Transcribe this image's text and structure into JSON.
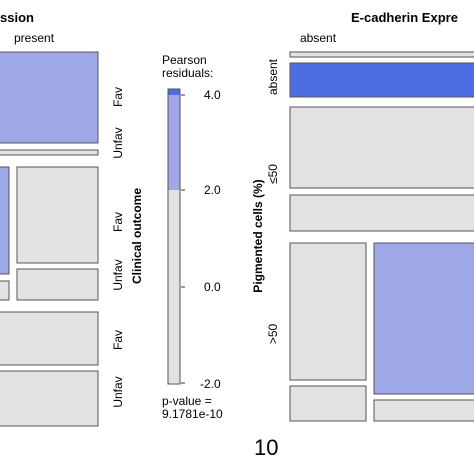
{
  "chart_data": [
    {
      "type": "mosaic",
      "title_fragment": "ssion",
      "column_label": "present",
      "x_variable_label": "Clinical outcome",
      "row_labels": [
        "Fav",
        "Unfav",
        "Fav",
        "Unfav",
        "Fav",
        "Unfav"
      ],
      "tiles": [
        {
          "row": 1,
          "col": "present",
          "residual": 3.0
        },
        {
          "row": 2,
          "col": "left",
          "residual": 3.0
        },
        {
          "row": 2,
          "col": "right",
          "residual": 0
        },
        {
          "row": 3,
          "col": "left",
          "residual": 0
        },
        {
          "row": 3,
          "col": "right",
          "residual": 0
        },
        {
          "row": 4,
          "col": "full",
          "residual": 0
        },
        {
          "row": 5,
          "col": "full",
          "residual": 0
        }
      ]
    },
    {
      "type": "mosaic",
      "title_fragment": "E-cadherin Expre",
      "column_label": "absent",
      "y_variable_label": "Pigmented cells (%)",
      "row_labels": [
        "absent",
        "≤50",
        ">50"
      ],
      "tiles": [
        {
          "row": "absent",
          "col": 1,
          "residual": 0
        },
        {
          "row": "absent",
          "col": 2,
          "residual": 4.0
        },
        {
          "row": "≤50",
          "col": 1,
          "residual": 0
        },
        {
          "row": "≤50",
          "col": 2,
          "residual": 0
        },
        {
          "row": ">50",
          "col": "absent-left",
          "residual": 0
        },
        {
          "row": ">50",
          "col": "right",
          "residual": 3.0
        },
        {
          "row": ">50",
          "col": "absent-left-bottom",
          "residual": 0
        },
        {
          "row": ">50",
          "col": "right-bottom",
          "residual": 0
        }
      ]
    }
  ],
  "legend": {
    "title_line1": "Pearson",
    "title_line2": "residuals:",
    "ticks": [
      "4.0",
      "2.0",
      "0.0",
      "-2.0"
    ],
    "range": [
      -2.0,
      4.0
    ],
    "shade_threshold": 2.0,
    "pvalue_line1": "p-value =",
    "pvalue_line2": "9.1781e-10"
  },
  "page_number": "10",
  "colors": {
    "neutral": "#e2e2e2",
    "positive_light": "#9ea8e6",
    "positive_strong": "#4d6ee0",
    "border": "#555555"
  }
}
